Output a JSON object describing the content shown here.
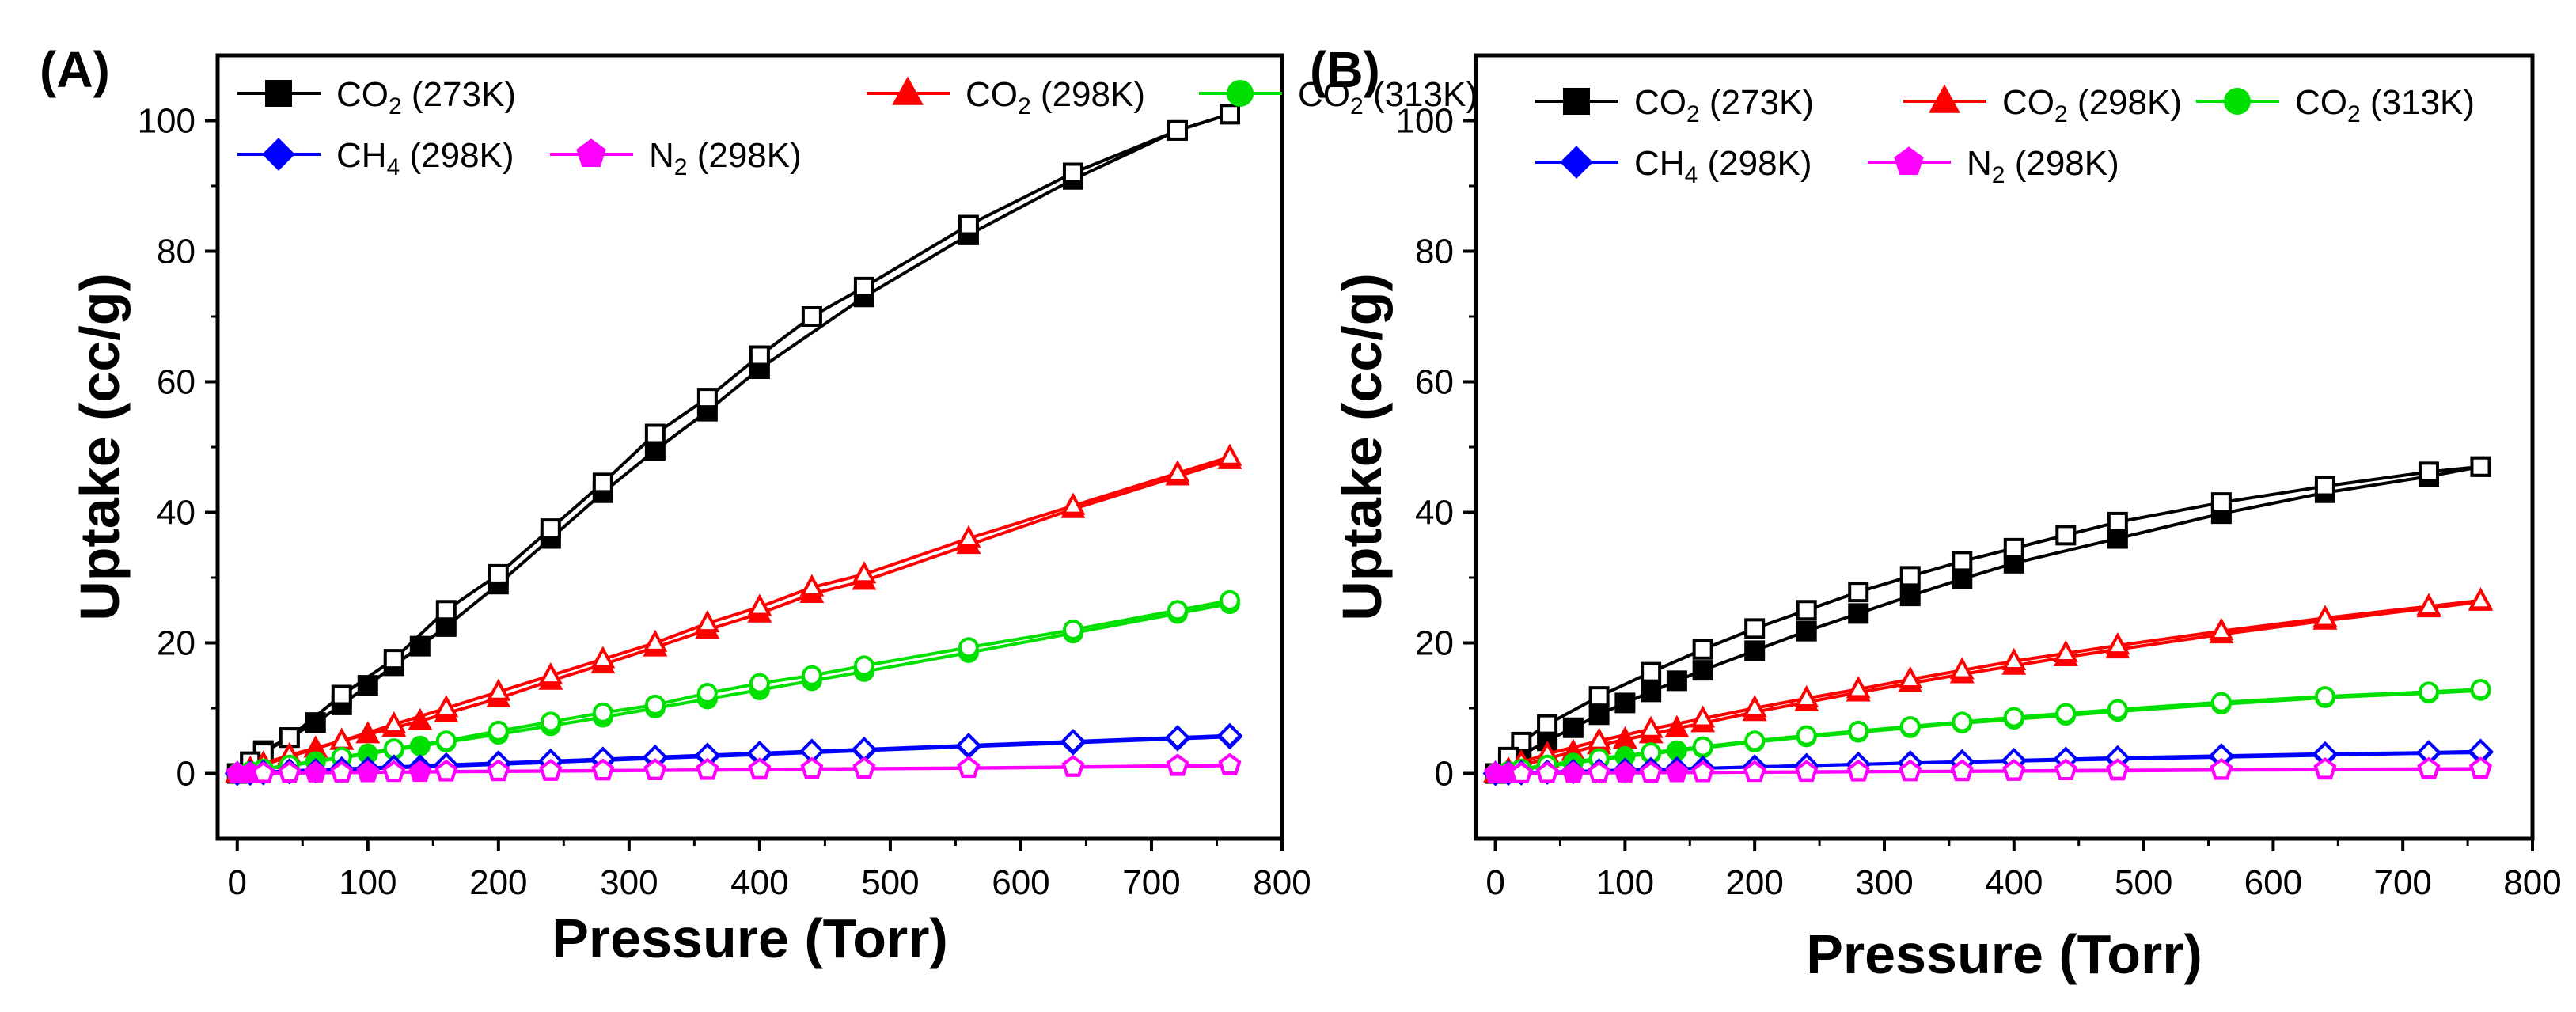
{
  "figure": {
    "panels": [
      "(A)",
      "(B)"
    ]
  },
  "chart_data": [
    {
      "panel": "(A)",
      "type": "line",
      "xlabel": "Pressure (Torr)",
      "ylabel": "Uptake (cc/g)",
      "xlim": [
        -15,
        800
      ],
      "ylim": [
        -10,
        110
      ],
      "xticks": [
        0,
        100,
        200,
        300,
        400,
        500,
        600,
        700,
        800
      ],
      "yticks": [
        0,
        20,
        40,
        60,
        80,
        100
      ],
      "legend_position": "top",
      "series": [
        {
          "name": "CO2 (273K)",
          "label_main": "CO",
          "label_sub": "2",
          "label_tail": " (273K)",
          "color": "#000000",
          "marker": "square",
          "adsorption": {
            "x": [
              0,
              10,
              20,
              40,
              60,
              80,
              100,
              120,
              140,
              160,
              200,
              240,
              280,
              320,
              360,
              400,
              480,
              560,
              640,
              720,
              760
            ],
            "y": [
              0,
              1.7,
              3.5,
              5.5,
              7.8,
              10.5,
              13.5,
              16.5,
              19.5,
              22.5,
              29,
              36,
              43,
              49.5,
              55.5,
              62,
              73,
              82.5,
              91,
              98.5,
              101
            ]
          },
          "desorption": {
            "x": [
              760,
              720,
              640,
              560,
              480,
              440,
              400,
              360,
              320,
              280,
              240,
              200,
              160,
              120,
              80,
              40,
              20,
              10
            ],
            "y": [
              101,
              98.5,
              92,
              84,
              74.5,
              70,
              64,
              57.5,
              52,
              44.5,
              37.5,
              30.5,
              25,
              17.5,
              12,
              5.5,
              3.2,
              1.8
            ]
          }
        },
        {
          "name": "CO2 (298K)",
          "label_main": "CO",
          "label_sub": "2",
          "label_tail": " (298K)",
          "color": "#ff0000",
          "marker": "triangle",
          "adsorption": {
            "x": [
              0,
              10,
              20,
              40,
              60,
              80,
              100,
              120,
              140,
              160,
              200,
              240,
              280,
              320,
              360,
              400,
              440,
              480,
              560,
              640,
              720,
              760
            ],
            "y": [
              0,
              0.7,
              1.3,
              2.6,
              3.8,
              5,
              6,
              7,
              8,
              9.2,
              11.5,
              14.2,
              16.7,
              19.3,
              22,
              24.5,
              27.5,
              29.5,
              35,
              40.5,
              45.5,
              48
            ]
          },
          "desorption": {
            "x": [
              760,
              720,
              640,
              560,
              480,
              440,
              400,
              360,
              320,
              280,
              240,
              200,
              160,
              120,
              80,
              40,
              20
            ],
            "y": [
              48.5,
              46,
              41,
              36,
              30.5,
              28.5,
              25.5,
              23,
              20,
              17.5,
              15,
              12.5,
              10,
              7.5,
              5,
              2.8,
              1.5
            ]
          }
        },
        {
          "name": "CO2 (313K)",
          "label_main": "CO",
          "label_sub": "2",
          "label_tail": " (313K)",
          "color": "#00e000",
          "marker": "circle",
          "adsorption": {
            "x": [
              0,
              10,
              20,
              40,
              60,
              80,
              100,
              120,
              140,
              160,
              200,
              240,
              280,
              320,
              360,
              400,
              440,
              480,
              560,
              640,
              720,
              760
            ],
            "y": [
              0,
              0.3,
              0.6,
              1.2,
              1.8,
              2.4,
              3,
              3.6,
              4.2,
              4.8,
              6,
              7.3,
              8.6,
              10,
              11.4,
              12.8,
              14.2,
              15.6,
              18.5,
              21.5,
              24.5,
              26
            ]
          },
          "desorption": {
            "x": [
              760,
              720,
              640,
              560,
              480,
              440,
              400,
              360,
              320,
              280,
              240,
              200,
              160,
              120,
              80,
              40,
              20
            ],
            "y": [
              26.5,
              25,
              22,
              19.3,
              16.5,
              15,
              13.8,
              12.3,
              10.5,
              9.3,
              7.9,
              6.5,
              5,
              3.8,
              2.5,
              1.3,
              0.7
            ]
          }
        },
        {
          "name": "CH4 (298K)",
          "label_main": "CH",
          "label_sub": "4",
          "label_tail": " (298K)",
          "color": "#0000ff",
          "marker": "diamond",
          "adsorption": {
            "x": [
              0,
              10,
              20,
              40,
              60,
              80,
              100,
              120,
              140,
              160,
              200,
              240,
              280,
              320,
              360,
              400,
              480,
              560,
              640,
              720,
              760
            ],
            "y": [
              0,
              0.05,
              0.1,
              0.25,
              0.4,
              0.55,
              0.7,
              0.85,
              1,
              1.1,
              1.4,
              1.7,
              2,
              2.3,
              2.6,
              2.9,
              3.5,
              4.1,
              4.7,
              5.3,
              5.6
            ]
          },
          "desorption": {
            "x": [
              760,
              720,
              640,
              560,
              480,
              440,
              400,
              360,
              320,
              280,
              240,
              200,
              160,
              120,
              80,
              40,
              20
            ],
            "y": [
              5.8,
              5.5,
              4.9,
              4.3,
              3.7,
              3.4,
              3.1,
              2.8,
              2.5,
              2.2,
              1.9,
              1.6,
              1.3,
              1,
              0.7,
              0.4,
              0.2
            ]
          }
        },
        {
          "name": "N2 (298K)",
          "label_main": "N",
          "label_sub": "2",
          "label_tail": " (298K)",
          "color": "#ff00ff",
          "marker": "pentagon",
          "adsorption": {
            "x": [
              0,
              10,
              20,
              40,
              60,
              80,
              100,
              120,
              140,
              160,
              200,
              240,
              280,
              320,
              360,
              400,
              480,
              560,
              640,
              720,
              760
            ],
            "y": [
              0,
              0,
              0,
              0.05,
              0.1,
              0.1,
              0.15,
              0.2,
              0.2,
              0.25,
              0.3,
              0.35,
              0.4,
              0.45,
              0.5,
              0.55,
              0.7,
              0.8,
              0.95,
              1.1,
              1.2
            ]
          },
          "desorption": {
            "x": [
              760,
              720,
              640,
              560,
              480,
              440,
              400,
              360,
              320,
              280,
              240,
              200,
              160,
              120,
              80,
              40,
              20
            ],
            "y": [
              1.3,
              1.2,
              1,
              0.85,
              0.75,
              0.7,
              0.6,
              0.55,
              0.5,
              0.45,
              0.4,
              0.35,
              0.3,
              0.2,
              0.15,
              0.1,
              0.05
            ]
          }
        }
      ]
    },
    {
      "panel": "(B)",
      "type": "line",
      "xlabel": "Pressure (Torr)",
      "ylabel": "Uptake (cc/g)",
      "xlim": [
        -15,
        800
      ],
      "ylim": [
        -10,
        110
      ],
      "xticks": [
        0,
        100,
        200,
        300,
        400,
        500,
        600,
        700,
        800
      ],
      "yticks": [
        0,
        20,
        40,
        60,
        80,
        100
      ],
      "legend_position": "top",
      "series": [
        {
          "name": "CO2 (273K)",
          "label_main": "CO",
          "label_sub": "2",
          "label_tail": " (273K)",
          "color": "#000000",
          "marker": "square",
          "adsorption": {
            "x": [
              0,
              10,
              20,
              40,
              60,
              80,
              100,
              120,
              140,
              160,
              200,
              240,
              280,
              320,
              360,
              400,
              480,
              560,
              640,
              720,
              760
            ],
            "y": [
              0,
              1.5,
              2.8,
              5,
              7,
              9,
              10.8,
              12.5,
              14.2,
              15.8,
              18.8,
              21.8,
              24.5,
              27.2,
              29.8,
              32.2,
              36,
              39.8,
              43,
              45.5,
              47
            ]
          },
          "desorption": {
            "x": [
              760,
              720,
              640,
              560,
              480,
              440,
              400,
              360,
              320,
              280,
              240,
              200,
              160,
              120,
              80,
              40,
              20,
              10
            ],
            "y": [
              47,
              46.2,
              44,
              41.5,
              38.5,
              36.5,
              34.5,
              32.5,
              30.2,
              27.8,
              25,
              22.2,
              19,
              15.5,
              11.8,
              7.5,
              4.8,
              2.5
            ]
          }
        },
        {
          "name": "CO2 (298K)",
          "label_main": "CO",
          "label_sub": "2",
          "label_tail": " (298K)",
          "color": "#ff0000",
          "marker": "triangle",
          "adsorption": {
            "x": [
              0,
              10,
              20,
              40,
              60,
              80,
              100,
              120,
              140,
              160,
              200,
              240,
              280,
              320,
              360,
              400,
              440,
              480,
              560,
              640,
              720,
              760
            ],
            "y": [
              0,
              0.6,
              1.2,
              2.3,
              3.3,
              4.3,
              5.2,
              6,
              6.9,
              7.7,
              9.4,
              10.9,
              12.4,
              13.8,
              15.2,
              16.5,
              17.8,
              19,
              21.3,
              23.4,
              25.3,
              26.3
            ]
          },
          "desorption": {
            "x": [
              760,
              720,
              640,
              560,
              480,
              440,
              400,
              360,
              320,
              280,
              240,
              200,
              160,
              120,
              80,
              40,
              20
            ],
            "y": [
              26.5,
              25.6,
              23.8,
              21.8,
              19.6,
              18.4,
              17.2,
              15.8,
              14.4,
              12.9,
              11.5,
              10,
              8.4,
              6.8,
              5,
              3,
              1.7
            ]
          }
        },
        {
          "name": "CO2 (313K)",
          "label_main": "CO",
          "label_sub": "2",
          "label_tail": " (313K)",
          "color": "#00e000",
          "marker": "circle",
          "adsorption": {
            "x": [
              0,
              10,
              20,
              40,
              60,
              80,
              100,
              120,
              140,
              160,
              200,
              240,
              280,
              320,
              360,
              400,
              440,
              480,
              560,
              640,
              720,
              760
            ],
            "y": [
              0,
              0.3,
              0.6,
              1.1,
              1.6,
              2.1,
              2.6,
              3,
              3.5,
              3.9,
              4.8,
              5.6,
              6.3,
              7,
              7.7,
              8.3,
              8.9,
              9.5,
              10.6,
              11.6,
              12.3,
              12.7
            ]
          },
          "desorption": {
            "x": [
              760,
              720,
              640,
              560,
              480,
              440,
              400,
              360,
              320,
              280,
              240,
              200,
              160,
              120,
              80,
              40,
              20
            ],
            "y": [
              12.9,
              12.5,
              11.8,
              10.9,
              9.8,
              9.2,
              8.6,
              7.9,
              7.2,
              6.5,
              5.8,
              5,
              4.1,
              3.2,
              2.3,
              1.3,
              0.7
            ]
          }
        },
        {
          "name": "CH4 (298K)",
          "label_main": "CH",
          "label_sub": "4",
          "label_tail": " (298K)",
          "color": "#0000ff",
          "marker": "diamond",
          "adsorption": {
            "x": [
              0,
              10,
              20,
              40,
              60,
              80,
              100,
              120,
              140,
              160,
              200,
              240,
              280,
              320,
              360,
              400,
              480,
              560,
              640,
              720,
              760
            ],
            "y": [
              0,
              0.05,
              0.1,
              0.2,
              0.3,
              0.4,
              0.5,
              0.6,
              0.7,
              0.8,
              1,
              1.2,
              1.4,
              1.6,
              1.7,
              1.9,
              2.2,
              2.5,
              2.8,
              3.1,
              3.2
            ]
          },
          "desorption": {
            "x": [
              760,
              720,
              640,
              560,
              480,
              440,
              400,
              360,
              320,
              280,
              240,
              200,
              160,
              120,
              80,
              40,
              20
            ],
            "y": [
              3.4,
              3.2,
              3,
              2.7,
              2.4,
              2.2,
              2,
              1.8,
              1.6,
              1.4,
              1.2,
              1,
              0.8,
              0.6,
              0.4,
              0.2,
              0.1
            ]
          }
        },
        {
          "name": "N2 (298K)",
          "label_main": "N",
          "label_sub": "2",
          "label_tail": " (298K)",
          "color": "#ff00ff",
          "marker": "pentagon",
          "adsorption": {
            "x": [
              0,
              10,
              20,
              40,
              60,
              80,
              100,
              120,
              140,
              160,
              200,
              240,
              280,
              320,
              360,
              400,
              480,
              560,
              640,
              720,
              760
            ],
            "y": [
              0,
              0,
              0,
              0.05,
              0.05,
              0.1,
              0.1,
              0.1,
              0.15,
              0.15,
              0.2,
              0.2,
              0.25,
              0.3,
              0.3,
              0.35,
              0.4,
              0.5,
              0.55,
              0.6,
              0.65
            ]
          },
          "desorption": {
            "x": [
              760,
              720,
              640,
              560,
              480,
              440,
              400,
              360,
              320,
              280,
              240,
              200,
              160,
              120,
              80,
              40,
              20
            ],
            "y": [
              0.75,
              0.7,
              0.65,
              0.55,
              0.5,
              0.45,
              0.4,
              0.35,
              0.3,
              0.3,
              0.25,
              0.2,
              0.15,
              0.1,
              0.1,
              0.05,
              0
            ]
          }
        }
      ]
    }
  ]
}
